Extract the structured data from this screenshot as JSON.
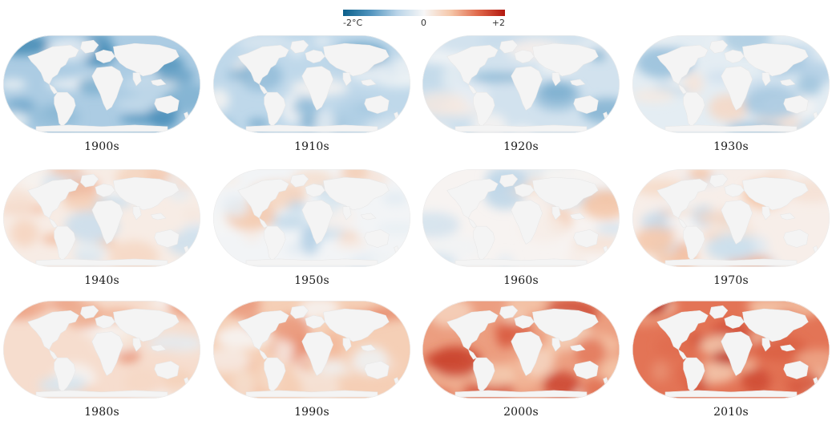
{
  "legend": {
    "min_label": "-2°C",
    "mid_label": "0",
    "max_label": "+2",
    "colors": [
      "#0b5f8a",
      "#4f93bd",
      "#b9d4e8",
      "#f7f7f7",
      "#f5c6a8",
      "#e0684a",
      "#b2180f"
    ]
  },
  "colors": {
    "land": "#f4f4f4",
    "ocean_neutral": "#f2f2f2"
  },
  "maps": [
    {
      "label": "1900s",
      "anomaly": -0.75
    },
    {
      "label": "1910s",
      "anomaly": -0.6
    },
    {
      "label": "1920s",
      "anomaly": -0.4
    },
    {
      "label": "1930s",
      "anomaly": -0.2
    },
    {
      "label": "1940s",
      "anomaly": 0.15
    },
    {
      "label": "1950s",
      "anomaly": -0.05
    },
    {
      "label": "1960s",
      "anomaly": 0.05
    },
    {
      "label": "1970s",
      "anomaly": 0.12
    },
    {
      "label": "1980s",
      "anomaly": 0.35
    },
    {
      "label": "1990s",
      "anomaly": 0.55
    },
    {
      "label": "2000s",
      "anomaly": 0.95
    },
    {
      "label": "2010s",
      "anomaly": 1.25
    }
  ]
}
